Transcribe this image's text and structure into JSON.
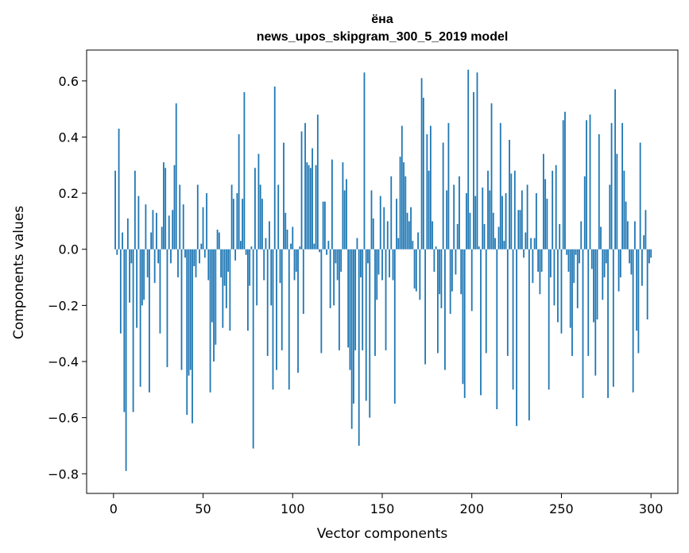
{
  "chart_data": {
    "type": "bar",
    "title_line1": "ёна",
    "title_line2": "news_upos_skipgram_300_5_2019 model",
    "xlabel": "Vector components",
    "ylabel": "Components values",
    "xlim": [
      -15,
      315
    ],
    "ylim": [
      -0.87,
      0.71
    ],
    "xticks": [
      0,
      50,
      100,
      150,
      200,
      250,
      300
    ],
    "xtick_labels": [
      "0",
      "50",
      "100",
      "150",
      "200",
      "250",
      "300"
    ],
    "yticks": [
      -0.8,
      -0.6,
      -0.4,
      -0.2,
      0.0,
      0.2,
      0.4,
      0.6
    ],
    "ytick_labels": [
      "−0.8",
      "−0.6",
      "−0.4",
      "−0.2",
      "0.0",
      "0.2",
      "0.4",
      "0.6"
    ],
    "bar_color": "#1f77b4",
    "x": [
      1,
      2,
      3,
      4,
      5,
      6,
      7,
      8,
      9,
      10,
      11,
      12,
      13,
      14,
      15,
      16,
      17,
      18,
      19,
      20,
      21,
      22,
      23,
      24,
      25,
      26,
      27,
      28,
      29,
      30,
      31,
      32,
      33,
      34,
      35,
      36,
      37,
      38,
      39,
      40,
      41,
      42,
      43,
      44,
      45,
      46,
      47,
      48,
      49,
      50,
      51,
      52,
      53,
      54,
      55,
      56,
      57,
      58,
      59,
      60,
      61,
      62,
      63,
      64,
      65,
      66,
      67,
      68,
      69,
      70,
      71,
      72,
      73,
      74,
      75,
      76,
      77,
      78,
      79,
      80,
      81,
      82,
      83,
      84,
      85,
      86,
      87,
      88,
      89,
      90,
      91,
      92,
      93,
      94,
      95,
      96,
      97,
      98,
      99,
      100,
      101,
      102,
      103,
      104,
      105,
      106,
      107,
      108,
      109,
      110,
      111,
      112,
      113,
      114,
      115,
      116,
      117,
      118,
      119,
      120,
      121,
      122,
      123,
      124,
      125,
      126,
      127,
      128,
      129,
      130,
      131,
      132,
      133,
      134,
      135,
      136,
      137,
      138,
      139,
      140,
      141,
      142,
      143,
      144,
      145,
      146,
      147,
      148,
      149,
      150,
      151,
      152,
      153,
      154,
      155,
      156,
      157,
      158,
      159,
      160,
      161,
      162,
      163,
      164,
      165,
      166,
      167,
      168,
      169,
      170,
      171,
      172,
      173,
      174,
      175,
      176,
      177,
      178,
      179,
      180,
      181,
      182,
      183,
      184,
      185,
      186,
      187,
      188,
      189,
      190,
      191,
      192,
      193,
      194,
      195,
      196,
      197,
      198,
      199,
      200,
      201,
      202,
      203,
      204,
      205,
      206,
      207,
      208,
      209,
      210,
      211,
      212,
      213,
      214,
      215,
      216,
      217,
      218,
      219,
      220,
      221,
      222,
      223,
      224,
      225,
      226,
      227,
      228,
      229,
      230,
      231,
      232,
      233,
      234,
      235,
      236,
      237,
      238,
      239,
      240,
      241,
      242,
      243,
      244,
      245,
      246,
      247,
      248,
      249,
      250,
      251,
      252,
      253,
      254,
      255,
      256,
      257,
      258,
      259,
      260,
      261,
      262,
      263,
      264,
      265,
      266,
      267,
      268,
      269,
      270,
      271,
      272,
      273,
      274,
      275,
      276,
      277,
      278,
      279,
      280,
      281,
      282,
      283,
      284,
      285,
      286,
      287,
      288,
      289,
      290,
      291,
      292,
      293,
      294,
      295,
      296,
      297,
      298,
      299,
      300
    ],
    "values": [
      0.28,
      -0.02,
      0.43,
      -0.3,
      0.06,
      -0.58,
      -0.79,
      0.11,
      -0.19,
      -0.05,
      -0.58,
      0.28,
      -0.28,
      0.19,
      -0.49,
      -0.2,
      -0.18,
      0.16,
      -0.1,
      -0.51,
      0.06,
      0.14,
      -0.12,
      0.13,
      -0.05,
      -0.3,
      0.08,
      0.31,
      0.29,
      -0.42,
      0.12,
      -0.05,
      0.14,
      0.3,
      0.52,
      -0.1,
      0.23,
      -0.43,
      0.16,
      -0.03,
      -0.59,
      -0.45,
      -0.43,
      -0.62,
      -0.06,
      -0.1,
      0.23,
      -0.05,
      0.02,
      0.15,
      -0.03,
      0.2,
      -0.11,
      -0.51,
      -0.26,
      -0.4,
      -0.34,
      0.07,
      0.06,
      -0.1,
      -0.28,
      -0.13,
      -0.21,
      -0.08,
      -0.29,
      0.23,
      0.18,
      -0.04,
      0.2,
      0.41,
      0.03,
      0.18,
      0.56,
      -0.02,
      -0.29,
      -0.13,
      0.01,
      -0.71,
      0.29,
      -0.2,
      0.34,
      0.23,
      0.18,
      -0.11,
      0.04,
      -0.38,
      0.1,
      -0.2,
      -0.5,
      0.58,
      -0.43,
      0.23,
      -0.12,
      -0.36,
      0.38,
      0.13,
      0.07,
      -0.5,
      0.02,
      0.08,
      -0.11,
      -0.08,
      -0.44,
      0.01,
      0.42,
      -0.23,
      0.45,
      0.31,
      0.3,
      0.29,
      0.36,
      0.02,
      0.3,
      0.48,
      -0.01,
      -0.37,
      0.17,
      0.17,
      -0.02,
      0.03,
      -0.21,
      0.32,
      -0.2,
      -0.05,
      -0.11,
      -0.36,
      -0.08,
      0.31,
      0.21,
      0.25,
      -0.35,
      -0.43,
      -0.64,
      -0.55,
      -0.36,
      0.04,
      -0.7,
      -0.1,
      -0.36,
      0.63,
      -0.54,
      -0.05,
      -0.6,
      0.21,
      0.11,
      -0.38,
      -0.18,
      -0.09,
      0.19,
      -0.11,
      0.15,
      -0.36,
      0.1,
      -0.1,
      0.26,
      -0.11,
      -0.55,
      0.18,
      0.04,
      0.33,
      0.44,
      0.31,
      0.26,
      0.13,
      0.1,
      0.15,
      0.03,
      -0.14,
      -0.15,
      0.06,
      -0.18,
      0.61,
      0.54,
      -0.41,
      0.41,
      0.28,
      0.44,
      0.1,
      -0.08,
      0.01,
      -0.37,
      -0.16,
      -0.21,
      0.38,
      -0.43,
      0.21,
      0.45,
      -0.23,
      -0.15,
      0.23,
      -0.09,
      0.09,
      0.26,
      -0.16,
      -0.48,
      -0.53,
      0.2,
      0.64,
      0.13,
      -0.22,
      0.56,
      0.19,
      0.63,
      0.01,
      -0.52,
      0.22,
      0.09,
      -0.37,
      0.28,
      0.21,
      0.52,
      0.13,
      0.04,
      -0.57,
      0.08,
      0.45,
      0.19,
      0.03,
      0.2,
      -0.38,
      0.39,
      0.27,
      -0.5,
      0.28,
      -0.63,
      0.14,
      0.14,
      0.21,
      -0.03,
      0.06,
      0.23,
      -0.61,
      0.04,
      -0.12,
      0.04,
      0.2,
      -0.08,
      -0.16,
      -0.08,
      0.34,
      0.25,
      0.18,
      -0.5,
      -0.1,
      0.28,
      -0.2,
      0.3,
      -0.26,
      0.09,
      -0.3,
      0.46,
      0.49,
      -0.02,
      -0.08,
      -0.28,
      -0.38,
      -0.12,
      -0.02,
      -0.21,
      -0.05,
      0.1,
      -0.53,
      0.26,
      0.46,
      -0.38,
      0.48,
      -0.07,
      -0.26,
      -0.45,
      -0.25,
      0.41,
      0.08,
      -0.18,
      -0.1,
      -0.05,
      -0.53,
      0.23,
      0.45,
      -0.49,
      0.57,
      0.34,
      -0.15,
      -0.1,
      0.45,
      0.28,
      0.17,
      0.1,
      -0.05,
      -0.09,
      -0.51,
      0.1,
      -0.29,
      -0.37,
      0.38,
      -0.13,
      0.05,
      0.14,
      -0.25,
      -0.05,
      -0.03
    ]
  }
}
